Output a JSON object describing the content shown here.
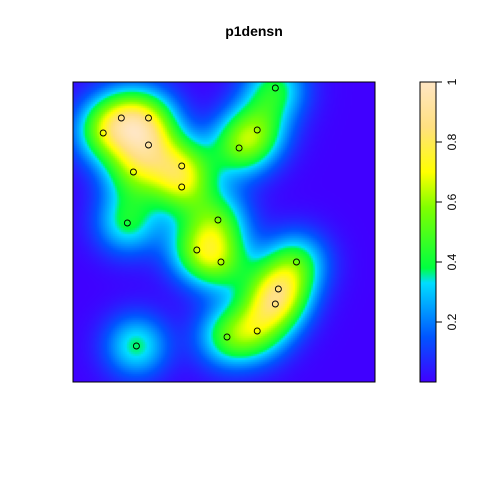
{
  "chart_data": {
    "type": "heatmap",
    "title": "p1densn",
    "xlabel": "",
    "ylabel": "",
    "axes_visible": false,
    "density_range": [
      0,
      1
    ],
    "points": [
      {
        "x": 0.1,
        "y": 0.83
      },
      {
        "x": 0.16,
        "y": 0.88
      },
      {
        "x": 0.25,
        "y": 0.88
      },
      {
        "x": 0.25,
        "y": 0.79
      },
      {
        "x": 0.2,
        "y": 0.7
      },
      {
        "x": 0.36,
        "y": 0.72
      },
      {
        "x": 0.36,
        "y": 0.65
      },
      {
        "x": 0.67,
        "y": 0.98
      },
      {
        "x": 0.61,
        "y": 0.84
      },
      {
        "x": 0.55,
        "y": 0.78
      },
      {
        "x": 0.18,
        "y": 0.53
      },
      {
        "x": 0.48,
        "y": 0.54
      },
      {
        "x": 0.41,
        "y": 0.44
      },
      {
        "x": 0.49,
        "y": 0.4
      },
      {
        "x": 0.74,
        "y": 0.4
      },
      {
        "x": 0.68,
        "y": 0.31
      },
      {
        "x": 0.67,
        "y": 0.26
      },
      {
        "x": 0.61,
        "y": 0.17
      },
      {
        "x": 0.51,
        "y": 0.15
      },
      {
        "x": 0.21,
        "y": 0.12
      }
    ],
    "colorbar": {
      "range": [
        0,
        1
      ],
      "ticks": [
        0.2,
        0.4,
        0.6,
        0.8,
        1
      ],
      "tick_labels": [
        "0.2",
        "0.4",
        "0.6",
        "0.8",
        "1"
      ],
      "stops": [
        {
          "value": 0.0,
          "color": "#4000ff"
        },
        {
          "value": 0.15,
          "color": "#0055ff"
        },
        {
          "value": 0.33,
          "color": "#00ddff"
        },
        {
          "value": 0.38,
          "color": "#00ff40"
        },
        {
          "value": 0.58,
          "color": "#7fff00"
        },
        {
          "value": 0.7,
          "color": "#ffff00"
        },
        {
          "value": 0.85,
          "color": "#ffe080"
        },
        {
          "value": 1.0,
          "color": "#ffe6c4"
        }
      ]
    }
  }
}
